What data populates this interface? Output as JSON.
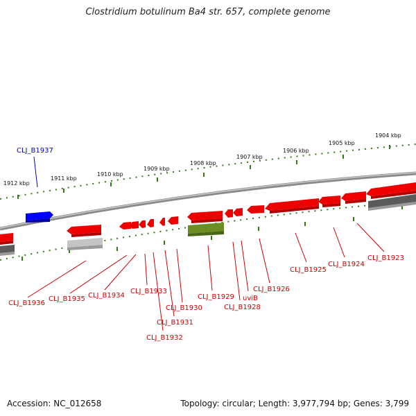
{
  "title": "Clostridium botulinum Ba4 str. 657, complete genome",
  "footer": {
    "accession": "Accession: NC_012658",
    "stats": "Topology: circular; Length: 3,977,794 bp; Genes: 3,799"
  },
  "colors": {
    "backbone": "#808080",
    "ticks": "#2e7d12",
    "gene_forward": "#ff0000",
    "gene_reverse_label": "#cc0000",
    "gene_blue": "#0000ff",
    "gene_blue_label": "#0000cc",
    "gene_olive": "#6b8e23",
    "gene_grey": "#5a5a5a",
    "gene_lightgrey": "#bdbdbd"
  },
  "scale": {
    "ticks": [
      "1912 kbp",
      "1911 kbp",
      "1910 kbp",
      "1909 kbp",
      "1908 kbp",
      "1907 kbp",
      "1906 kbp",
      "1905 kbp",
      "1904 kbp"
    ]
  },
  "genes": [
    {
      "label": "CLJ_B1937",
      "color": "blue"
    },
    {
      "label": "CLJ_B1936",
      "color": "red"
    },
    {
      "label": "CLJ_B1935",
      "color": "red"
    },
    {
      "label": "CLJ_B1934",
      "color": "red"
    },
    {
      "label": "CLJ_B1933",
      "color": "red"
    },
    {
      "label": "CLJ_B1932",
      "color": "red"
    },
    {
      "label": "CLJ_B1931",
      "color": "red"
    },
    {
      "label": "CLJ_B1930",
      "color": "red"
    },
    {
      "label": "CLJ_B1929",
      "color": "red"
    },
    {
      "label": "CLJ_B1928",
      "color": "red"
    },
    {
      "label": "uviB",
      "color": "red"
    },
    {
      "label": "CLJ_B1926",
      "color": "red"
    },
    {
      "label": "CLJ_B1925",
      "color": "red"
    },
    {
      "label": "CLJ_B1924",
      "color": "red"
    },
    {
      "label": "CLJ_B1923",
      "color": "red"
    }
  ]
}
